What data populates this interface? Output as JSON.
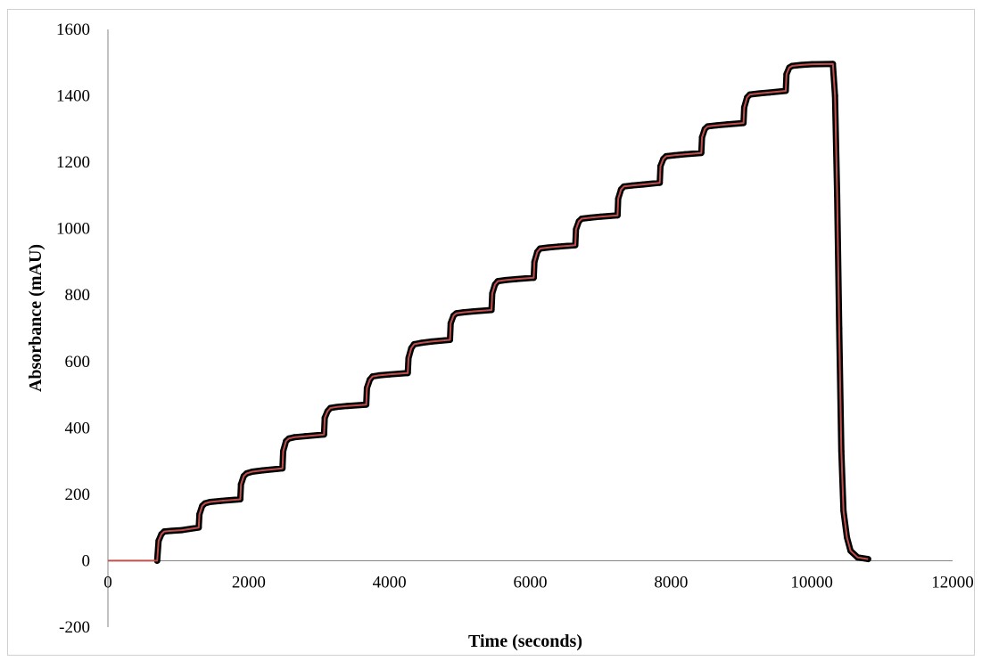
{
  "chart_data": {
    "type": "scatter",
    "title": "",
    "xlabel": "Time (seconds)",
    "ylabel": "Absorbance (mAU)",
    "xlim": [
      0,
      12000
    ],
    "ylim": [
      -200,
      1600
    ],
    "x_ticks": [
      0,
      2000,
      4000,
      6000,
      8000,
      10000,
      12000
    ],
    "y_ticks": [
      -200,
      0,
      200,
      400,
      600,
      800,
      1000,
      1200,
      1400,
      1600
    ],
    "grid": false,
    "legend": "none",
    "colors": {
      "measured": "#000000",
      "fit": "#c0504d"
    },
    "series": [
      {
        "marker": "thick-dots",
        "color": "#000000",
        "x": [
          700,
          720,
          760,
          800,
          900,
          1050,
          1290,
          1300,
          1340,
          1380,
          1450,
          1600,
          1880,
          1890,
          1930,
          1970,
          2050,
          2200,
          2480,
          2490,
          2530,
          2570,
          2650,
          2800,
          3070,
          3080,
          3120,
          3160,
          3250,
          3400,
          3670,
          3680,
          3720,
          3760,
          3850,
          4000,
          4260,
          4270,
          4310,
          4350,
          4450,
          4600,
          4860,
          4870,
          4910,
          4950,
          5050,
          5200,
          5450,
          5460,
          5500,
          5540,
          5650,
          5800,
          6050,
          6060,
          6100,
          6140,
          6250,
          6400,
          6640,
          6650,
          6690,
          6730,
          6850,
          7000,
          7240,
          7250,
          7290,
          7330,
          7450,
          7600,
          7840,
          7850,
          7890,
          7930,
          8050,
          8200,
          8430,
          8440,
          8480,
          8520,
          8650,
          8800,
          9030,
          9040,
          9080,
          9120,
          9250,
          9400,
          9630,
          9640,
          9680,
          9720,
          9850,
          10000,
          10300,
          10330,
          10360,
          10390,
          10420,
          10450,
          10500,
          10550,
          10650,
          10800
        ],
        "y": [
          0,
          60,
          80,
          88,
          90,
          92,
          100,
          140,
          165,
          173,
          177,
          180,
          185,
          230,
          255,
          263,
          268,
          272,
          278,
          330,
          360,
          368,
          372,
          375,
          380,
          430,
          450,
          460,
          463,
          466,
          470,
          520,
          545,
          555,
          558,
          561,
          565,
          610,
          640,
          652,
          656,
          660,
          665,
          715,
          738,
          745,
          748,
          751,
          755,
          805,
          832,
          842,
          845,
          848,
          852,
          900,
          930,
          940,
          943,
          946,
          950,
          998,
          1022,
          1030,
          1033,
          1036,
          1040,
          1090,
          1118,
          1127,
          1130,
          1133,
          1138,
          1188,
          1210,
          1218,
          1221,
          1224,
          1228,
          1275,
          1300,
          1308,
          1311,
          1314,
          1318,
          1365,
          1395,
          1404,
          1407,
          1410,
          1415,
          1465,
          1485,
          1490,
          1493,
          1495,
          1496,
          1400,
          1100,
          700,
          330,
          150,
          70,
          30,
          10,
          5
        ]
      },
      {
        "marker": "line",
        "color": "#c0504d",
        "x": [
          0,
          650,
          700,
          720,
          760,
          800,
          900,
          1050,
          1290,
          1300,
          1340,
          1380,
          1450,
          1600,
          1880,
          1890,
          1930,
          1970,
          2050,
          2200,
          2480,
          2490,
          2530,
          2570,
          2650,
          2800,
          3070,
          3080,
          3120,
          3160,
          3250,
          3400,
          3670,
          3680,
          3720,
          3760,
          3850,
          4000,
          4260,
          4270,
          4310,
          4350,
          4450,
          4600,
          4860,
          4870,
          4910,
          4950,
          5050,
          5200,
          5450,
          5460,
          5500,
          5540,
          5650,
          5800,
          6050,
          6060,
          6100,
          6140,
          6250,
          6400,
          6640,
          6650,
          6690,
          6730,
          6850,
          7000,
          7240,
          7250,
          7290,
          7330,
          7450,
          7600,
          7840,
          7850,
          7890,
          7930,
          8050,
          8200,
          8430,
          8440,
          8480,
          8520,
          8650,
          8800,
          9030,
          9040,
          9080,
          9120,
          9250,
          9400,
          9630,
          9640,
          9680,
          9720,
          9850,
          10000,
          10300,
          10330,
          10360,
          10390,
          10420,
          10450,
          10500,
          10550,
          10650,
          10800
        ],
        "y": [
          0,
          0,
          0,
          60,
          80,
          88,
          90,
          92,
          100,
          140,
          165,
          173,
          177,
          180,
          185,
          230,
          255,
          263,
          268,
          272,
          278,
          330,
          360,
          368,
          372,
          375,
          380,
          430,
          450,
          460,
          463,
          466,
          470,
          520,
          545,
          555,
          558,
          561,
          565,
          610,
          640,
          652,
          656,
          660,
          665,
          715,
          738,
          745,
          748,
          751,
          755,
          805,
          832,
          842,
          845,
          848,
          852,
          900,
          930,
          940,
          943,
          946,
          950,
          998,
          1022,
          1030,
          1033,
          1036,
          1040,
          1090,
          1118,
          1127,
          1130,
          1133,
          1138,
          1188,
          1210,
          1218,
          1221,
          1224,
          1228,
          1275,
          1300,
          1308,
          1311,
          1314,
          1318,
          1365,
          1395,
          1404,
          1407,
          1410,
          1415,
          1465,
          1485,
          1490,
          1493,
          1495,
          1496,
          1400,
          1100,
          700,
          330,
          150,
          70,
          30,
          10,
          5
        ]
      }
    ]
  }
}
